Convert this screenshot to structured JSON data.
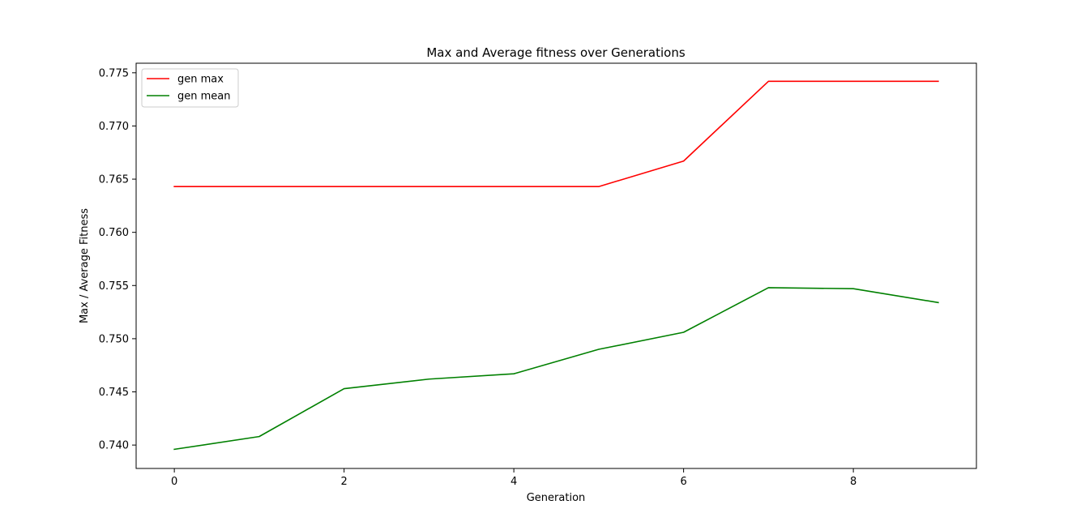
{
  "chart_data": {
    "type": "line",
    "title": "Max and Average fitness over Generations",
    "xlabel": "Generation",
    "ylabel": "Max / Average Fitness",
    "x": [
      0,
      1,
      2,
      3,
      4,
      5,
      6,
      7,
      8,
      9
    ],
    "xlim": [
      -0.45,
      9.45
    ],
    "ylim": [
      0.7378,
      0.7759
    ],
    "xticks": [
      0,
      2,
      4,
      6,
      8
    ],
    "xtick_labels": [
      "0",
      "2",
      "4",
      "6",
      "8"
    ],
    "yticks": [
      0.74,
      0.745,
      0.75,
      0.755,
      0.76,
      0.765,
      0.77,
      0.775
    ],
    "ytick_labels": [
      "0.740",
      "0.745",
      "0.750",
      "0.755",
      "0.760",
      "0.765",
      "0.770",
      "0.775"
    ],
    "grid": false,
    "legend_position": "top-left",
    "series": [
      {
        "name": "gen max",
        "color": "#ff0000",
        "values": [
          0.7643,
          0.7643,
          0.7643,
          0.7643,
          0.7643,
          0.7643,
          0.7667,
          0.7742,
          0.7742,
          0.7742
        ]
      },
      {
        "name": "gen mean",
        "color": "#008000",
        "values": [
          0.7396,
          0.7408,
          0.7453,
          0.7462,
          0.7467,
          0.749,
          0.7506,
          0.7548,
          0.7547,
          0.7534
        ]
      }
    ]
  }
}
